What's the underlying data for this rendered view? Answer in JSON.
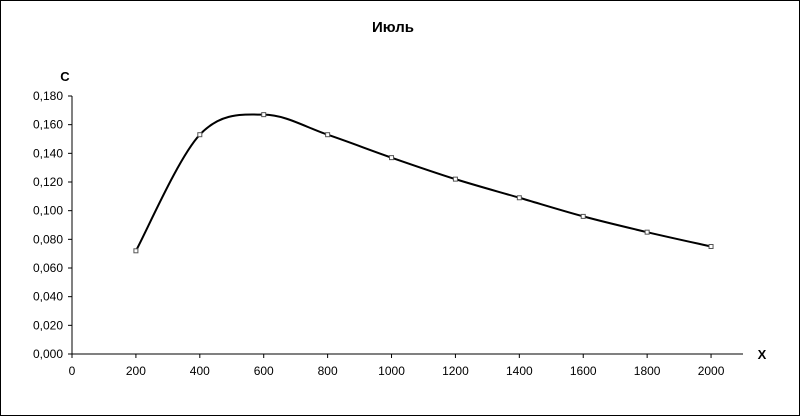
{
  "chart_data": {
    "type": "line",
    "title": "Июль",
    "xlabel": "X",
    "ylabel": "C",
    "x": [
      200,
      400,
      600,
      800,
      1000,
      1200,
      1400,
      1600,
      1800,
      2000
    ],
    "series": [
      {
        "values": [
          0.072,
          0.153,
          0.167,
          0.153,
          0.137,
          0.122,
          0.109,
          0.096,
          0.085,
          0.075
        ],
        "color": "#000000"
      }
    ],
    "xlim": [
      0,
      2000
    ],
    "ylim": [
      0,
      0.18
    ],
    "xticks": [
      0,
      200,
      400,
      600,
      800,
      1000,
      1200,
      1400,
      1600,
      1800,
      2000
    ],
    "yticks": [
      0,
      0.02,
      0.04,
      0.06,
      0.08,
      0.1,
      0.12,
      0.14,
      0.16,
      0.18
    ],
    "xtick_labels": [
      "0",
      "200",
      "400",
      "600",
      "800",
      "1000",
      "1200",
      "1400",
      "1600",
      "1800",
      "2000"
    ],
    "ytick_labels": [
      "0,000",
      "0,020",
      "0,040",
      "0,060",
      "0,080",
      "0,100",
      "0,120",
      "0,140",
      "0,160",
      "0,180"
    ],
    "grid": false,
    "legend": "none",
    "smooth": true
  }
}
